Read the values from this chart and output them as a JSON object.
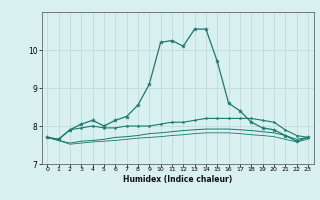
{
  "xlabel": "Humidex (Indice chaleur)",
  "x_values": [
    0,
    1,
    2,
    3,
    4,
    5,
    6,
    7,
    8,
    9,
    10,
    11,
    12,
    13,
    14,
    15,
    16,
    17,
    18,
    19,
    20,
    21,
    22,
    23
  ],
  "line1_y": [
    7.7,
    7.65,
    7.9,
    8.05,
    8.15,
    8.0,
    8.15,
    8.25,
    8.55,
    9.1,
    10.2,
    10.25,
    10.1,
    10.55,
    10.55,
    9.7,
    8.6,
    8.4,
    8.1,
    7.95,
    7.9,
    7.75,
    7.6,
    7.7
  ],
  "line2_y": [
    7.7,
    7.65,
    7.9,
    7.95,
    8.0,
    7.95,
    7.95,
    8.0,
    8.0,
    8.0,
    8.05,
    8.1,
    8.1,
    8.15,
    8.2,
    8.2,
    8.2,
    8.2,
    8.2,
    8.15,
    8.1,
    7.9,
    7.75,
    7.7
  ],
  "line3_y": [
    7.7,
    7.62,
    7.55,
    7.6,
    7.62,
    7.65,
    7.7,
    7.72,
    7.75,
    7.8,
    7.82,
    7.85,
    7.88,
    7.9,
    7.92,
    7.92,
    7.92,
    7.9,
    7.88,
    7.85,
    7.82,
    7.75,
    7.65,
    7.7
  ],
  "line4_y": [
    7.7,
    7.62,
    7.52,
    7.55,
    7.58,
    7.6,
    7.62,
    7.65,
    7.68,
    7.7,
    7.72,
    7.75,
    7.77,
    7.8,
    7.82,
    7.82,
    7.82,
    7.8,
    7.77,
    7.75,
    7.72,
    7.65,
    7.58,
    7.65
  ],
  "line_color": "#1a7a6e",
  "bg_color": "#d8f0ef",
  "grid_color": "#b8d8d5",
  "ylim": [
    7.0,
    11.0
  ],
  "yticks": [
    7,
    8,
    9,
    10
  ],
  "xlim": [
    -0.5,
    23.5
  ],
  "xticks": [
    0,
    1,
    2,
    3,
    4,
    5,
    6,
    7,
    8,
    9,
    10,
    11,
    12,
    13,
    14,
    15,
    16,
    17,
    18,
    19,
    20,
    21,
    22,
    23
  ]
}
